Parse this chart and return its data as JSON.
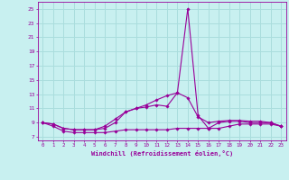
{
  "xlabel": "Windchill (Refroidissement éolien,°C)",
  "x_values": [
    0,
    1,
    2,
    3,
    4,
    5,
    6,
    7,
    8,
    9,
    10,
    11,
    12,
    13,
    14,
    15,
    16,
    17,
    18,
    19,
    20,
    21,
    22,
    23
  ],
  "line1": [
    9.0,
    8.8,
    8.2,
    8.0,
    8.0,
    8.0,
    8.5,
    9.5,
    10.5,
    11.0,
    11.2,
    11.5,
    11.3,
    13.2,
    25.0,
    10.0,
    8.2,
    9.0,
    9.2,
    9.2,
    9.0,
    9.0,
    9.0,
    8.5
  ],
  "line2": [
    9.0,
    8.5,
    7.8,
    7.6,
    7.6,
    7.6,
    7.6,
    7.8,
    8.0,
    8.0,
    8.0,
    8.0,
    8.0,
    8.2,
    8.2,
    8.2,
    8.2,
    8.2,
    8.5,
    8.8,
    8.8,
    8.8,
    8.8,
    8.5
  ],
  "line3": [
    9.0,
    8.8,
    8.2,
    8.0,
    8.0,
    8.0,
    8.2,
    9.0,
    10.5,
    11.0,
    11.5,
    12.2,
    12.8,
    13.2,
    12.5,
    9.8,
    9.0,
    9.2,
    9.3,
    9.3,
    9.2,
    9.2,
    9.0,
    8.5
  ],
  "line_color": "#990099",
  "bg_color": "#c8f0f0",
  "grid_color": "#aadddd",
  "text_color": "#990099",
  "ylim_min": 6.5,
  "ylim_max": 26.0,
  "yticks": [
    7,
    9,
    11,
    13,
    15,
    17,
    19,
    21,
    23,
    25
  ],
  "xlim_min": -0.5,
  "xlim_max": 23.5
}
